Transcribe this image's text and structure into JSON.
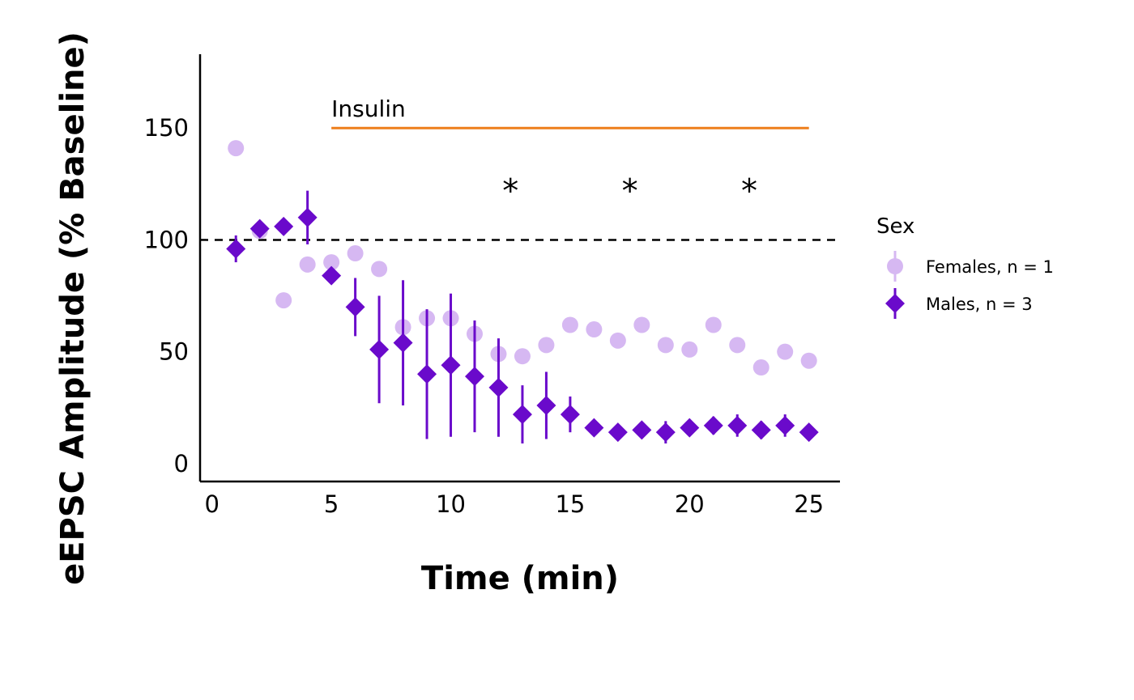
{
  "chart_data": {
    "type": "scatter",
    "xlabel": "Time (min)",
    "ylabel": "eEPSC Amplitude (% Baseline)",
    "xlim": [
      -0.5,
      26.3
    ],
    "ylim": [
      -8,
      183
    ],
    "xticks": [
      "0",
      "5",
      "10",
      "15",
      "20",
      "25"
    ],
    "yticks": [
      "0",
      "50",
      "100",
      "150"
    ],
    "baseline": 100,
    "treatment": {
      "label": "Insulin",
      "start": 5,
      "end": 25,
      "y": 150,
      "color": "#ee7e1b"
    },
    "significance": {
      "symbol": "*",
      "x": [
        12.5,
        17.5,
        22.5
      ],
      "y": 125
    },
    "legend": {
      "title": "Sex",
      "position": "right"
    },
    "series": [
      {
        "name": "Females, n = 1",
        "marker": "circle",
        "color": "#d6b8f2",
        "x": [
          1,
          2,
          3,
          4,
          5,
          6,
          7,
          8,
          9,
          10,
          11,
          12,
          13,
          14,
          15,
          16,
          17,
          18,
          19,
          20,
          21,
          22,
          23,
          24,
          25
        ],
        "y": [
          141,
          104,
          73,
          89,
          90,
          94,
          87,
          61,
          65,
          65,
          58,
          49,
          48,
          53,
          62,
          60,
          55,
          62,
          53,
          51,
          62,
          53,
          43,
          50,
          46
        ],
        "err": []
      },
      {
        "name": "Males, n = 3",
        "marker": "diamond",
        "color": "#6a0acb",
        "x": [
          1,
          2,
          3,
          4,
          5,
          6,
          7,
          8,
          9,
          10,
          11,
          12,
          13,
          14,
          15,
          16,
          17,
          18,
          19,
          20,
          21,
          22,
          23,
          24,
          25
        ],
        "y": [
          96,
          105,
          106,
          110,
          84,
          70,
          51,
          54,
          40,
          44,
          39,
          34,
          22,
          26,
          22,
          16,
          14,
          15,
          14,
          16,
          17,
          17,
          15,
          17,
          14
        ],
        "err": [
          6,
          0,
          0,
          12,
          0,
          13,
          24,
          28,
          29,
          32,
          25,
          22,
          13,
          15,
          8,
          3,
          2,
          2,
          5,
          2,
          4,
          5,
          4,
          5,
          2
        ]
      }
    ]
  }
}
